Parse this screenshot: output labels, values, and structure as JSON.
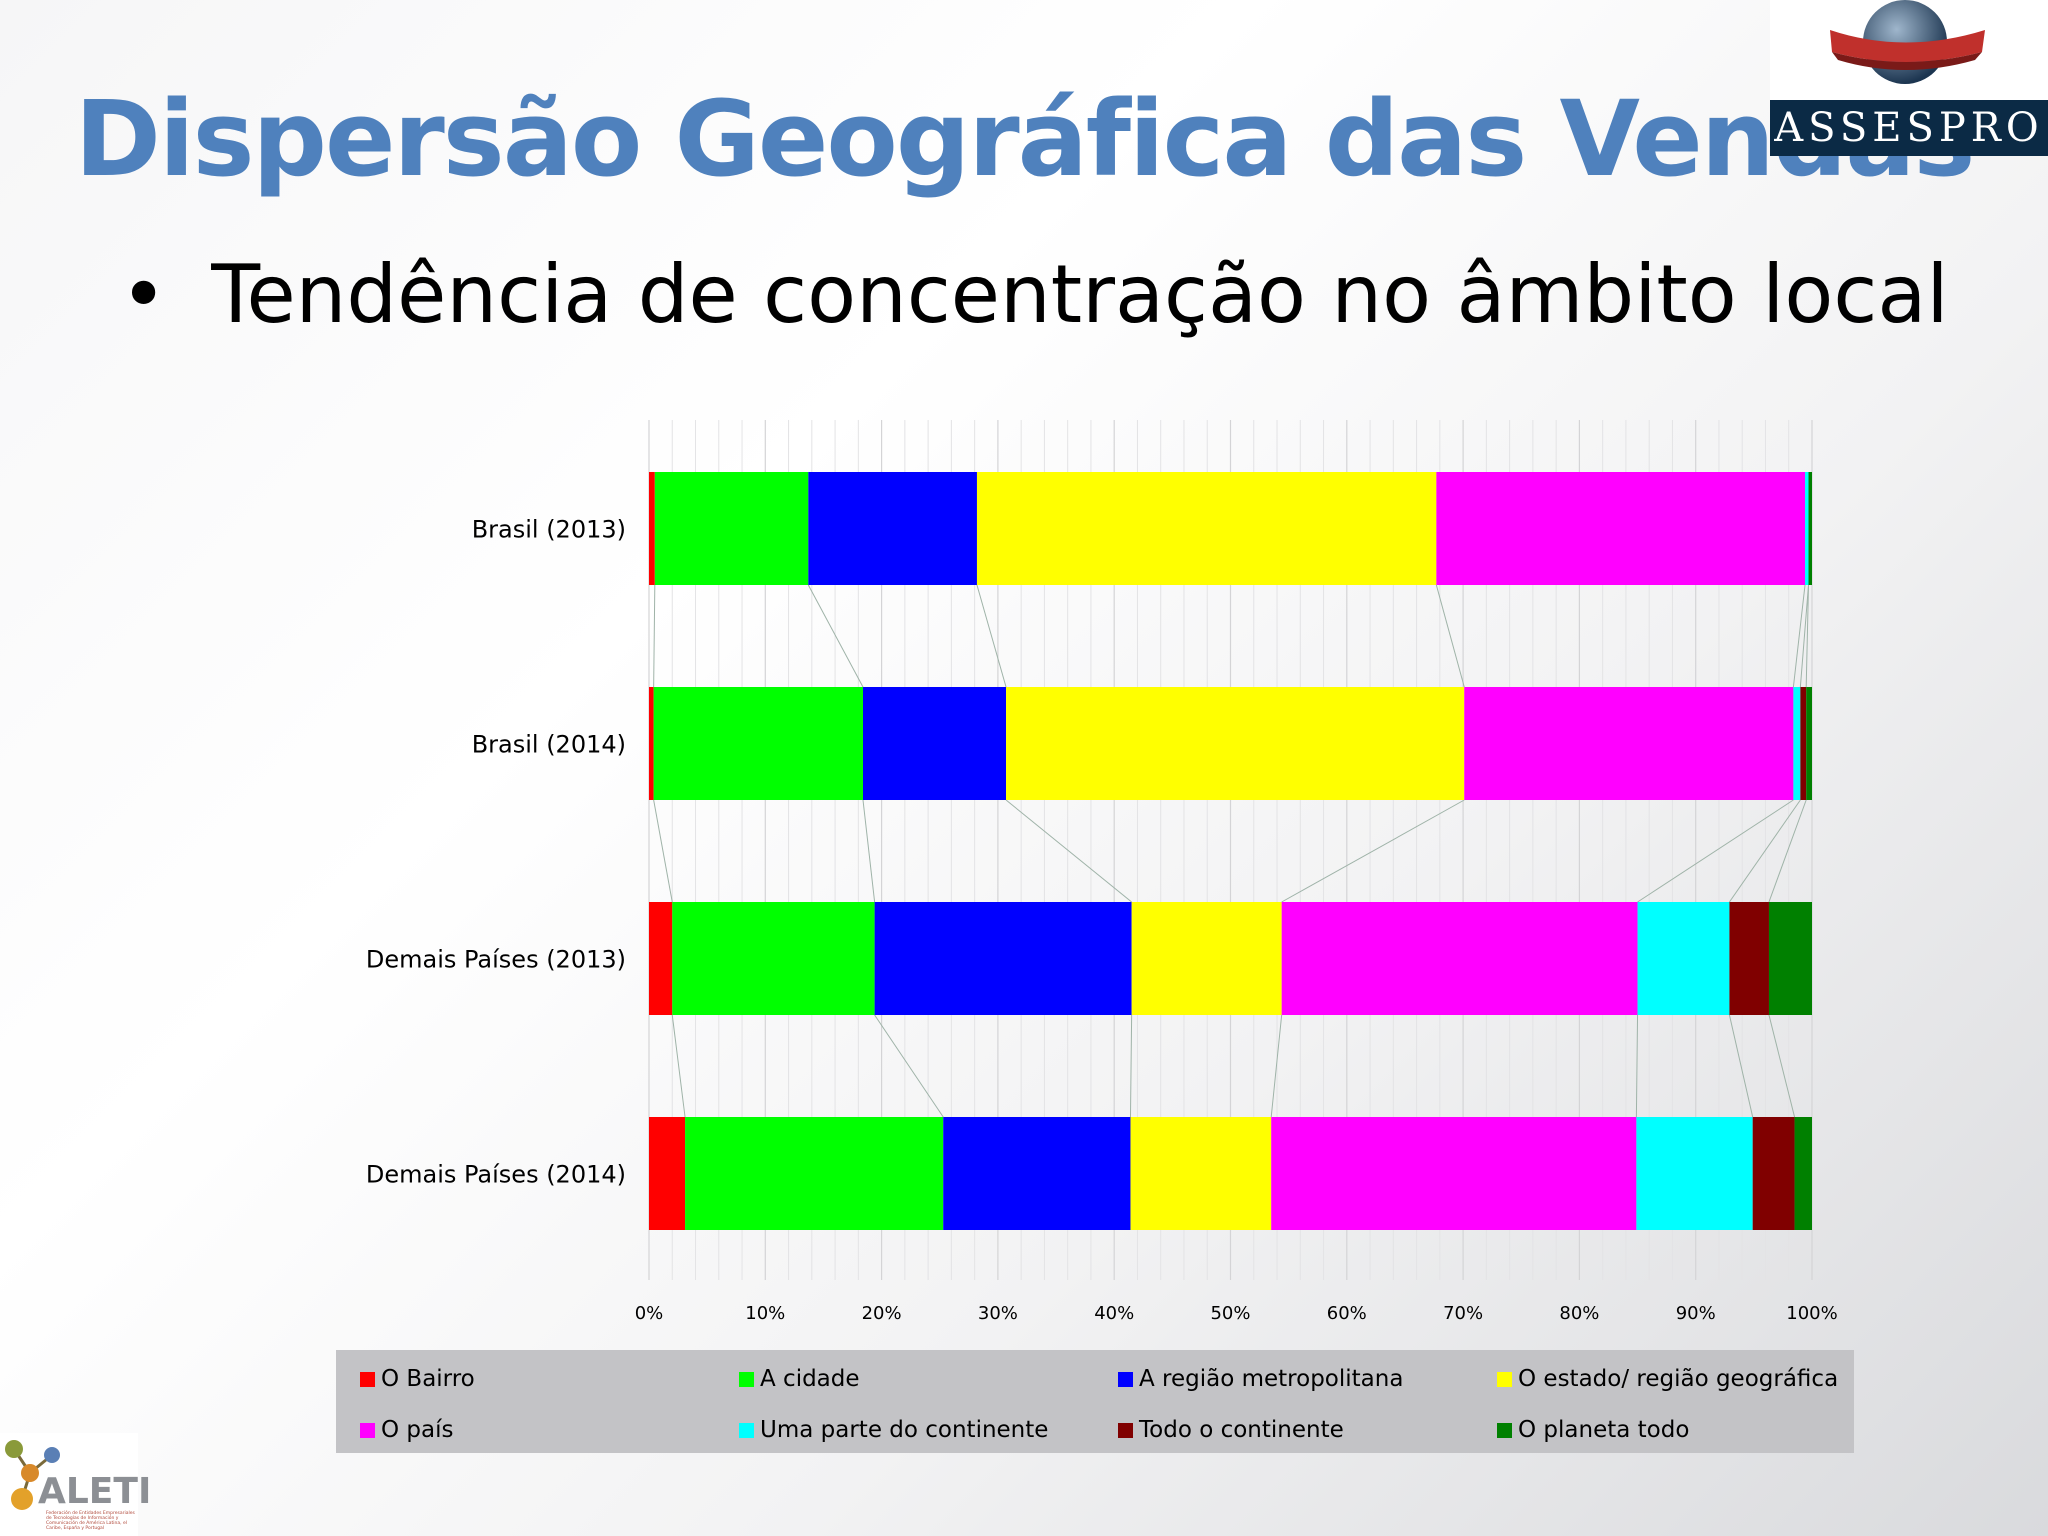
{
  "slide": {
    "title": "Dispersão Geográfica das Vendas",
    "bullet": "Tendência de concentração no âmbito local"
  },
  "logos": {
    "assespro": "ASSESPRO",
    "aleti": "ALETI",
    "aleti_tagline": "Federación de Entidades Empresariales de Tecnologías de Información y Comunicación de América Latina, el Caribe, España y Portugal"
  },
  "colors": {
    "title": "#4f81bd",
    "legend_bg": "#c3c3c6",
    "assespro_band": "#0b2a45"
  },
  "chart_data": {
    "type": "bar",
    "orientation": "horizontal",
    "stacked": "100%",
    "categories": [
      "Brasil (2013)",
      "Brasil (2014)",
      "Demais Países (2013)",
      "Demais Países (2014)"
    ],
    "xlim": [
      0,
      100
    ],
    "x_ticks": [
      "0%",
      "10%",
      "20%",
      "30%",
      "40%",
      "50%",
      "60%",
      "70%",
      "80%",
      "90%",
      "100%"
    ],
    "grid": true,
    "series_lines": true,
    "legend_position": "bottom",
    "series": [
      {
        "name": "O Bairro",
        "color": "#ff0000",
        "values": [
          0.5,
          0.4,
          2.0,
          3.1
        ]
      },
      {
        "name": "A cidade",
        "color": "#00ff00",
        "values": [
          13.2,
          18.0,
          17.4,
          22.2
        ]
      },
      {
        "name": "A região metropolitana",
        "color": "#0000ff",
        "values": [
          14.5,
          12.3,
          22.1,
          16.1
        ]
      },
      {
        "name": "O estado/ região geográfica",
        "color": "#ffff00",
        "values": [
          39.5,
          39.4,
          12.9,
          12.1
        ]
      },
      {
        "name": "O país",
        "color": "#ff00ff",
        "values": [
          31.7,
          28.3,
          30.6,
          31.4
        ]
      },
      {
        "name": "Uma parte do continente",
        "color": "#00ffff",
        "values": [
          0.3,
          0.6,
          7.9,
          10.0
        ]
      },
      {
        "name": "Todo o continente",
        "color": "#800000",
        "values": [
          0.0,
          0.5,
          3.4,
          3.6
        ]
      },
      {
        "name": "O planeta todo",
        "color": "#008000",
        "values": [
          0.3,
          0.5,
          3.7,
          1.5
        ]
      }
    ]
  }
}
